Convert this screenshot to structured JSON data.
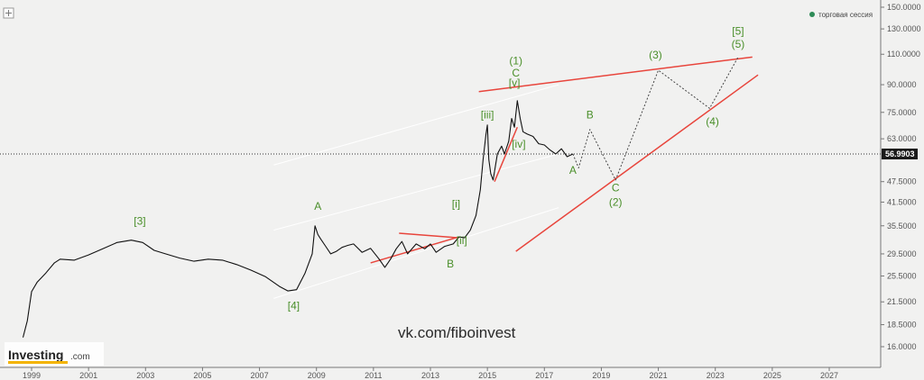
{
  "chart_data": {
    "type": "line",
    "y_scale": "log",
    "ylim": [
      14.5,
      150
    ],
    "xlim": [
      1998.5,
      2028.3
    ],
    "y_ticks": [
      "150.0000",
      "130.0000",
      "110.0000",
      "90.0000",
      "75.0000",
      "63.0000",
      "56.9903",
      "47.5000",
      "41.5000",
      "35.5000",
      "29.5000",
      "25.5000",
      "21.5000",
      "18.5000",
      "16.0000"
    ],
    "x_ticks": [
      "1999",
      "2001",
      "2003",
      "2005",
      "2007",
      "2009",
      "2011",
      "2013",
      "2015",
      "2017",
      "2019",
      "2021",
      "2023",
      "2025",
      "2027"
    ],
    "current_price": "56.9903",
    "current_price_value": 56.99,
    "grid": false,
    "legend": {
      "label": "торговая сессия",
      "color": "#2e8b57",
      "position": "top-right"
    },
    "series": [
      {
        "type": "price",
        "color": "#111111",
        "x": [
          1998.7,
          1998.85,
          1999.0,
          1999.2,
          1999.5,
          1999.8,
          2000.0,
          2000.5,
          2001.0,
          2001.5,
          2002.0,
          2002.5,
          2002.9,
          2003.3,
          2003.7,
          2004.2,
          2004.7,
          2005.2,
          2005.7,
          2006.2,
          2006.7,
          2007.2,
          2007.7,
          2008.0,
          2008.3,
          2008.6,
          2008.85,
          2008.95,
          2009.05,
          2009.15,
          2009.3,
          2009.5,
          2009.7,
          2009.9,
          2010.1,
          2010.3,
          2010.6,
          2010.9,
          2011.2,
          2011.4,
          2011.6,
          2011.8,
          2012.0,
          2012.2,
          2012.5,
          2012.8,
          2013.0,
          2013.2,
          2013.5,
          2013.8,
          2014.0,
          2014.2,
          2014.4,
          2014.6,
          2014.75,
          2014.85,
          2014.95,
          2015.0,
          2015.05,
          2015.12,
          2015.2,
          2015.35,
          2015.5,
          2015.6,
          2015.75,
          2015.85,
          2015.95,
          2016.05,
          2016.15,
          2016.25,
          2016.4,
          2016.6,
          2016.8,
          2017.0,
          2017.2,
          2017.4,
          2017.6,
          2017.8,
          2018.0
        ],
        "y": [
          17,
          19,
          23,
          24.5,
          26,
          27.8,
          28.5,
          28.3,
          29.3,
          30.5,
          31.8,
          32.3,
          31.8,
          30.2,
          29.5,
          28.7,
          28.1,
          28.5,
          28.3,
          27.5,
          26.5,
          25.4,
          23.8,
          23.1,
          23.3,
          26,
          29.5,
          35.5,
          33.5,
          32.5,
          31.2,
          29.5,
          30,
          30.8,
          31.2,
          31.5,
          29.8,
          30.6,
          28.5,
          27,
          28.5,
          30.5,
          32,
          29.5,
          31.5,
          30.5,
          31.5,
          29.8,
          31,
          31.5,
          33,
          32.8,
          34.5,
          38,
          45,
          55,
          65,
          69,
          55,
          50,
          48,
          57,
          60,
          57,
          62,
          72,
          68,
          81,
          72,
          66,
          65,
          64,
          61,
          60.5,
          58.5,
          57,
          59,
          56,
          56.99
        ]
      },
      {
        "type": "projection",
        "color": "#444444",
        "dash": true,
        "x": [
          2018.0,
          2018.2,
          2018.6,
          2019.5,
          2021.0,
          2022.8,
          2023.8
        ],
        "y": [
          56.99,
          52,
          67,
          48,
          99,
          77,
          108
        ]
      }
    ],
    "trendlines": [
      {
        "color": "#e8453c",
        "x": [
          2014.7,
          2024.3
        ],
        "y": [
          86,
          108
        ]
      },
      {
        "color": "#e8453c",
        "x": [
          2016.0,
          2024.5
        ],
        "y": [
          30,
          96
        ]
      },
      {
        "color": "#e8453c",
        "x": [
          2011.9,
          2014.0
        ],
        "y": [
          33.8,
          32.8
        ]
      },
      {
        "color": "#e8453c",
        "x": [
          2010.9,
          2014.0
        ],
        "y": [
          27.8,
          33
        ]
      },
      {
        "color": "#e8453c",
        "x": [
          2015.25,
          2016.05
        ],
        "y": [
          47.5,
          68
        ]
      },
      {
        "color": "#ffffff",
        "x": [
          2007.5,
          2017.5
        ],
        "y": [
          53,
          90
        ]
      },
      {
        "color": "#ffffff",
        "x": [
          2007.5,
          2017.5
        ],
        "y": [
          34.5,
          57
        ]
      },
      {
        "color": "#ffffff",
        "x": [
          2007.5,
          2017.5
        ],
        "y": [
          22,
          40
        ]
      }
    ],
    "annotations": [
      {
        "text": "[3]",
        "x": 2002.8,
        "y": 35.8
      },
      {
        "text": "A",
        "x": 2009.05,
        "y": 39.5
      },
      {
        "text": "[4]",
        "x": 2008.2,
        "y": 20.5
      },
      {
        "text": "B",
        "x": 2013.7,
        "y": 27
      },
      {
        "text": "[i]",
        "x": 2013.9,
        "y": 40
      },
      {
        "text": "[ii]",
        "x": 2014.1,
        "y": 31.5
      },
      {
        "text": "[iii]",
        "x": 2015.0,
        "y": 72
      },
      {
        "text": "[iv]",
        "x": 2016.1,
        "y": 59.5
      },
      {
        "text": "[v]",
        "x": 2015.95,
        "y": 89
      },
      {
        "text": "C",
        "x": 2016.0,
        "y": 95
      },
      {
        "text": "(1)",
        "x": 2016.0,
        "y": 103
      },
      {
        "text": "A",
        "x": 2018.0,
        "y": 50
      },
      {
        "text": "B",
        "x": 2018.6,
        "y": 72
      },
      {
        "text": "C",
        "x": 2019.5,
        "y": 44.5
      },
      {
        "text": "(2)",
        "x": 2019.5,
        "y": 40.5
      },
      {
        "text": "(3)",
        "x": 2020.9,
        "y": 107
      },
      {
        "text": "(4)",
        "x": 2022.9,
        "y": 69
      },
      {
        "text": "(5)",
        "x": 2023.8,
        "y": 115
      },
      {
        "text": "[5]",
        "x": 2023.8,
        "y": 125
      }
    ]
  },
  "watermark": "vk.com/fiboinvest",
  "logo": {
    "main": "Investing",
    "sub": ".com"
  }
}
